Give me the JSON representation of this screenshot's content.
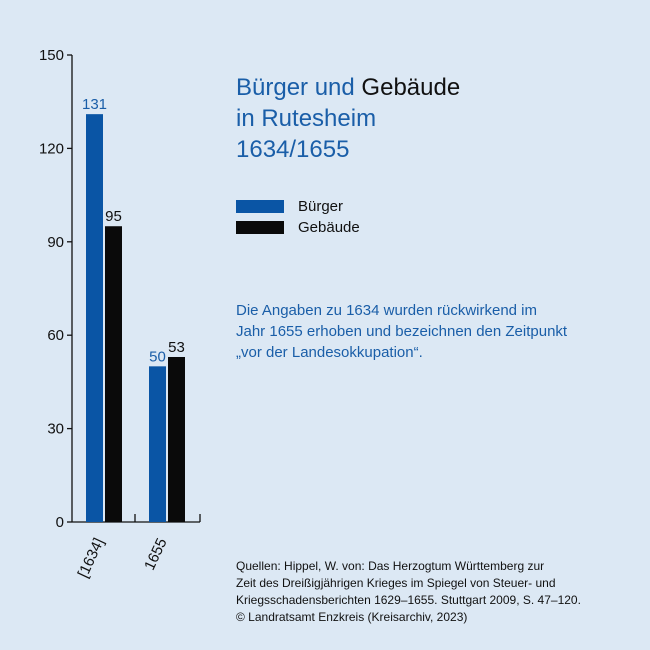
{
  "title": {
    "part1": "Bürger und",
    "part2": "Gebäude",
    "line2": "in Rutesheim",
    "line3": "1634/1655"
  },
  "note": {
    "line1": "Die Angaben zu 1634 wurden rückwirkend im",
    "line2": "Jahr 1655 erhoben und bezeichnen den Zeitpunkt",
    "line3": "„vor der Landesokkupation“."
  },
  "sources": {
    "line1": "Quellen: Hippel, W. von: Das Herzogtum Württemberg zur",
    "line2": "Zeit des Dreißigjährigen Krieges im Spiegel von Steuer- und",
    "line3": "Kriegsschadensberichten 1629–1655. Stuttgart 2009, S. 47–120.",
    "line4": "© Landratsamt Enzkreis (Kreisarchiv, 2023)"
  },
  "chart_data": {
    "type": "bar",
    "title": "Bürger und Gebäude in Rutesheim 1634/1655",
    "categories": [
      "[1634]",
      "1655"
    ],
    "series": [
      {
        "name": "Bürger",
        "values": [
          131,
          50
        ],
        "color": "#0a55a5",
        "label_color": "#1a5ea8"
      },
      {
        "name": "Gebäude",
        "values": [
          95,
          53
        ],
        "color": "#0a0a0a",
        "label_color": "#111111"
      }
    ],
    "yticks": [
      0,
      30,
      60,
      90,
      120,
      150
    ],
    "ylim": [
      0,
      150
    ],
    "grid": false,
    "legend_position": "right"
  }
}
